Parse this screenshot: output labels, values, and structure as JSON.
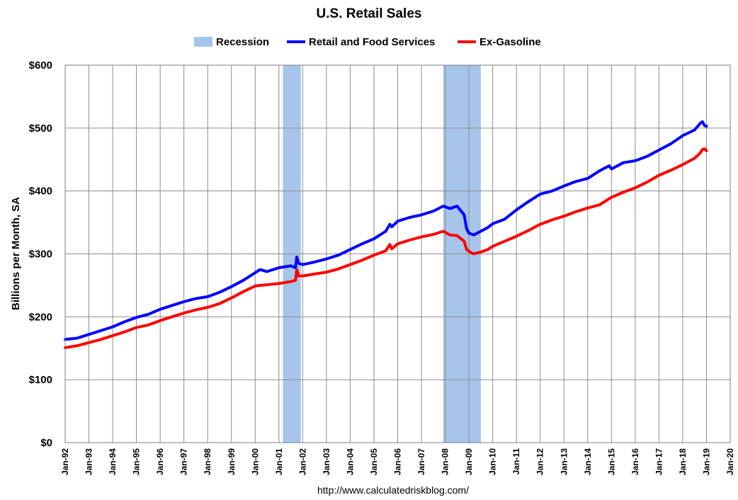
{
  "chart_data": {
    "type": "line",
    "title": "U.S. Retail Sales",
    "ylabel": "Billions per Month, SA",
    "xlabel": "",
    "source_text": "http://www.calculatedriskblog.com/",
    "ylim": [
      0,
      600
    ],
    "xlim": [
      1992.0,
      2020.0
    ],
    "y_ticks": [
      0,
      100,
      200,
      300,
      400,
      500,
      600
    ],
    "y_tick_labels": [
      "$0",
      "$100",
      "$200",
      "$300",
      "$400",
      "$500",
      "$600"
    ],
    "x_tick_labels": [
      "Jan-92",
      "Jan-93",
      "Jan-94",
      "Jan-95",
      "Jan-96",
      "Jan-97",
      "Jan-98",
      "Jan-99",
      "Jan-00",
      "Jan-01",
      "Jan-02",
      "Jan-03",
      "Jan-04",
      "Jan-05",
      "Jan-06",
      "Jan-07",
      "Jan-08",
      "Jan-09",
      "Jan-10",
      "Jan-11",
      "Jan-12",
      "Jan-13",
      "Jan-14",
      "Jan-15",
      "Jan-16",
      "Jan-17",
      "Jan-18",
      "Jan-19",
      "Jan-20"
    ],
    "grid": true,
    "legend_position": "top-center",
    "recessions": [
      {
        "name": "Recession",
        "start": 2001.17,
        "end": 2001.92
      },
      {
        "name": "Recession",
        "start": 2007.92,
        "end": 2009.5
      }
    ],
    "series": [
      {
        "name": "Retail and Food Services",
        "color": "#0000ff",
        "x": [
          1992.0,
          1992.5,
          1993.0,
          1993.5,
          1994.0,
          1994.5,
          1995.0,
          1995.5,
          1996.0,
          1996.5,
          1997.0,
          1997.5,
          1998.0,
          1998.5,
          1999.0,
          1999.5,
          2000.0,
          2000.2,
          2000.5,
          2001.0,
          2001.5,
          2001.7,
          2001.75,
          2001.83,
          2002.0,
          2002.5,
          2003.0,
          2003.5,
          2004.0,
          2004.5,
          2005.0,
          2005.5,
          2005.67,
          2005.75,
          2006.0,
          2006.5,
          2007.0,
          2007.5,
          2007.92,
          2008.2,
          2008.5,
          2008.8,
          2008.9,
          2009.0,
          2009.2,
          2009.5,
          2009.8,
          2010.0,
          2010.5,
          2011.0,
          2011.5,
          2012.0,
          2012.5,
          2013.0,
          2013.5,
          2014.0,
          2014.5,
          2014.9,
          2015.0,
          2015.5,
          2016.0,
          2016.5,
          2017.0,
          2017.5,
          2018.0,
          2018.5,
          2018.75,
          2018.83,
          2018.92,
          2019.0
        ],
        "values": [
          164,
          166,
          172,
          178,
          184,
          192,
          199,
          204,
          212,
          218,
          224,
          229,
          232,
          239,
          248,
          258,
          270,
          275,
          272,
          278,
          281,
          278,
          295,
          285,
          283,
          287,
          292,
          298,
          307,
          316,
          324,
          336,
          347,
          343,
          352,
          358,
          362,
          368,
          376,
          372,
          376,
          362,
          340,
          333,
          330,
          336,
          342,
          348,
          355,
          370,
          383,
          395,
          400,
          408,
          415,
          420,
          432,
          440,
          435,
          445,
          448,
          455,
          465,
          475,
          488,
          497,
          508,
          510,
          504,
          503
        ]
      },
      {
        "name": "Ex-Gasoline",
        "color": "#ff0000",
        "x": [
          1992.0,
          1992.5,
          1993.0,
          1993.5,
          1994.0,
          1994.5,
          1995.0,
          1995.5,
          1996.0,
          1996.5,
          1997.0,
          1997.5,
          1998.0,
          1998.5,
          1999.0,
          1999.5,
          2000.0,
          2000.5,
          2001.0,
          2001.5,
          2001.7,
          2001.75,
          2001.83,
          2002.0,
          2002.5,
          2003.0,
          2003.5,
          2004.0,
          2004.5,
          2005.0,
          2005.5,
          2005.67,
          2005.75,
          2006.0,
          2006.5,
          2007.0,
          2007.5,
          2007.92,
          2008.2,
          2008.5,
          2008.8,
          2008.9,
          2009.0,
          2009.2,
          2009.5,
          2009.8,
          2010.0,
          2010.5,
          2011.0,
          2011.5,
          2012.0,
          2012.5,
          2013.0,
          2013.5,
          2014.0,
          2014.5,
          2015.0,
          2015.5,
          2016.0,
          2016.5,
          2017.0,
          2017.5,
          2018.0,
          2018.5,
          2018.75,
          2018.83,
          2018.92,
          2019.0
        ],
        "values": [
          151,
          154,
          159,
          164,
          170,
          176,
          183,
          187,
          194,
          200,
          206,
          211,
          215,
          221,
          230,
          240,
          249,
          251,
          253,
          256,
          258,
          275,
          265,
          265,
          268,
          271,
          276,
          283,
          290,
          298,
          305,
          315,
          308,
          316,
          322,
          327,
          331,
          336,
          330,
          329,
          320,
          307,
          304,
          300,
          303,
          307,
          312,
          320,
          328,
          337,
          347,
          354,
          360,
          367,
          373,
          378,
          390,
          398,
          405,
          414,
          425,
          433,
          442,
          452,
          461,
          466,
          467,
          464
        ]
      }
    ]
  },
  "legend": {
    "recession_label": "Recession",
    "retail_label": "Retail and Food Services",
    "exgas_label": "Ex-Gasoline"
  },
  "colors": {
    "recession": "#a7c4ea",
    "retail": "#0000ff",
    "exgas": "#ff0000",
    "grid": "#8c8c8c",
    "axis": "#7f7f7f"
  }
}
